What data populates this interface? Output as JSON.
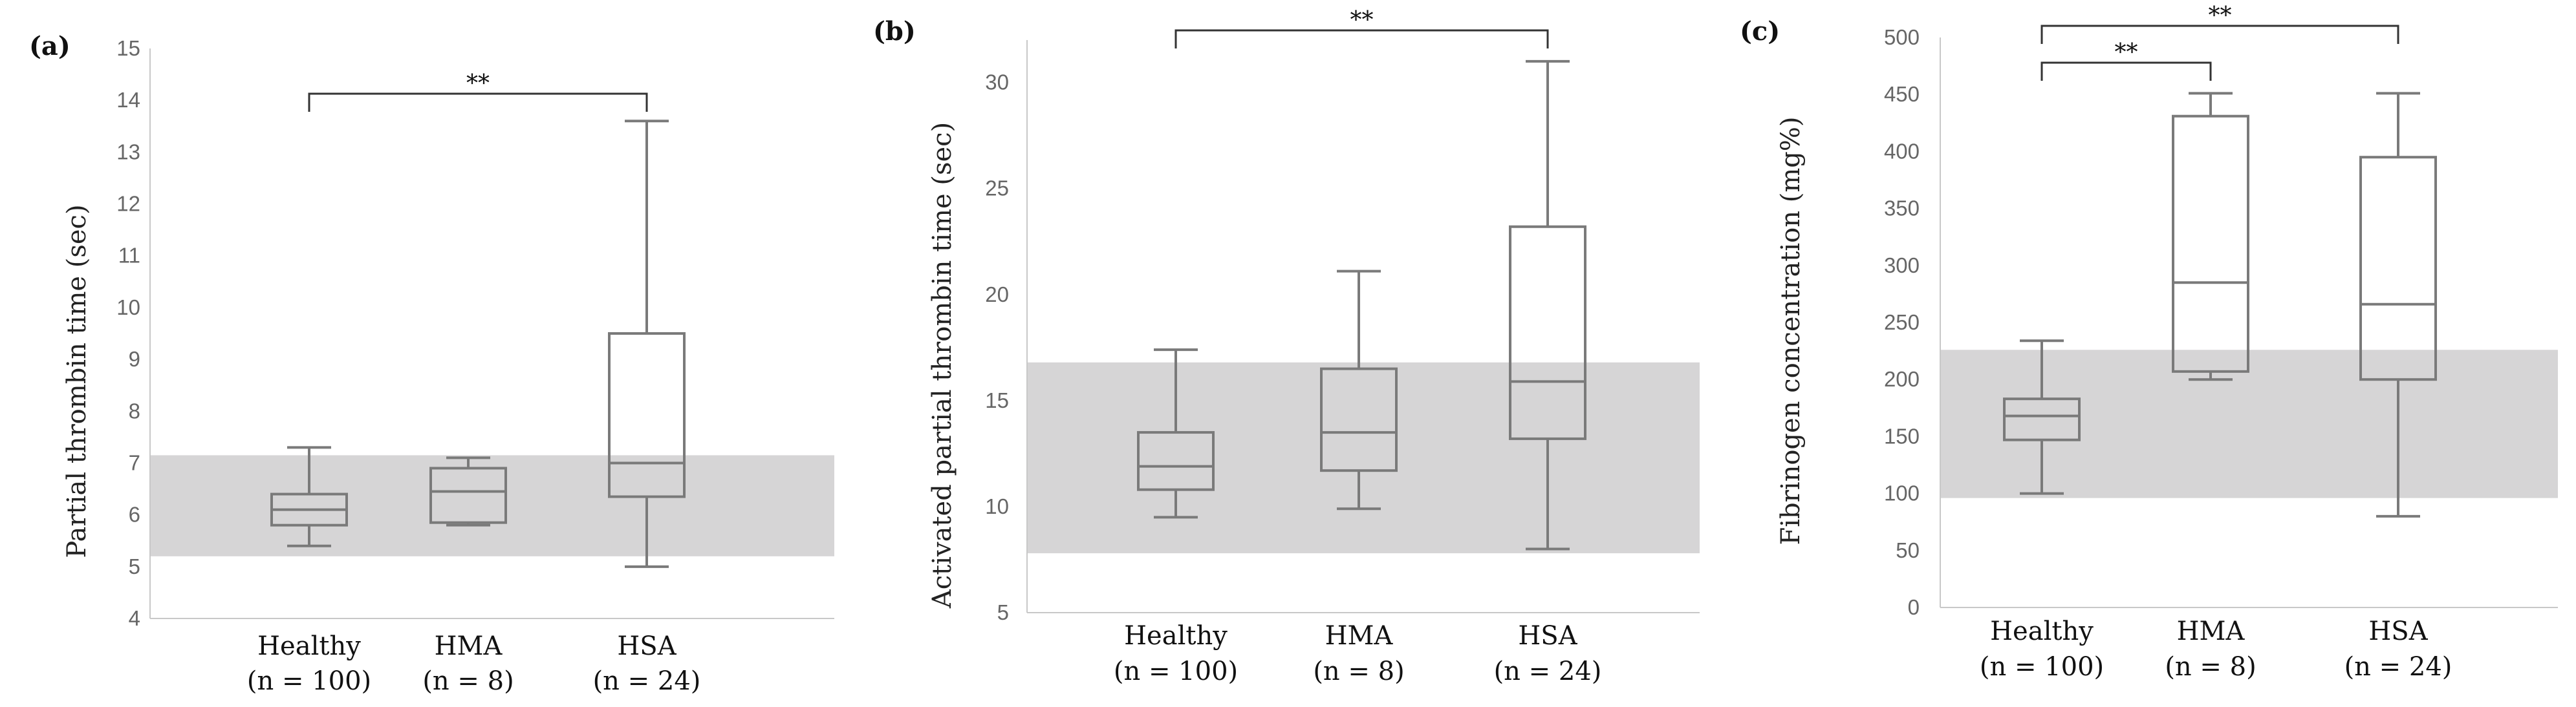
{
  "chart_data": [
    {
      "type": "box",
      "panel_label": "(a)",
      "ylabel": "Partial thrombin time (sec)",
      "ylim": [
        4,
        15
      ],
      "yticks": [
        "4",
        "5",
        "6",
        "7",
        "8",
        "9",
        "10",
        "11",
        "12",
        "13",
        "14",
        "15"
      ],
      "categories": [
        "Healthy",
        "HMA",
        "HSA"
      ],
      "category_n": [
        "(n = 100)",
        "(n = 8)",
        "(n = 24)"
      ],
      "reference_range": [
        5.2,
        7.15
      ],
      "boxes": [
        {
          "min": 5.4,
          "q1": 5.8,
          "median": 6.1,
          "q3": 6.4,
          "max": 7.3
        },
        {
          "min": 5.8,
          "q1": 5.85,
          "median": 6.45,
          "q3": 6.9,
          "max": 7.1
        },
        {
          "min": 5.0,
          "q1": 6.35,
          "median": 7.0,
          "q3": 9.5,
          "max": 13.6
        }
      ],
      "significance": [
        {
          "from": 0,
          "to": 2,
          "label": "**"
        }
      ]
    },
    {
      "type": "box",
      "panel_label": "(b)",
      "ylabel": "Activated partial thrombin time (sec)",
      "ylim": [
        5,
        32
      ],
      "yticks": [
        "5",
        "10",
        "15",
        "20",
        "25",
        "30"
      ],
      "categories": [
        "Healthy",
        "HMA",
        "HSA"
      ],
      "category_n": [
        "(n = 100)",
        "(n = 8)",
        "(n = 24)"
      ],
      "reference_range": [
        7.8,
        16.8
      ],
      "boxes": [
        {
          "min": 9.5,
          "q1": 10.8,
          "median": 11.9,
          "q3": 13.5,
          "max": 17.4
        },
        {
          "min": 9.9,
          "q1": 11.7,
          "median": 13.5,
          "q3": 16.5,
          "max": 21.1
        },
        {
          "min": 8.0,
          "q1": 13.2,
          "median": 15.9,
          "q3": 23.2,
          "max": 31.0
        }
      ],
      "significance": [
        {
          "from": 0,
          "to": 2,
          "label": "**"
        }
      ]
    },
    {
      "type": "box",
      "panel_label": "(c)",
      "ylabel": "Fibrinogen concentration (mg%)",
      "ylim": [
        0,
        500
      ],
      "yticks": [
        "0",
        "50",
        "100",
        "150",
        "200",
        "250",
        "300",
        "350",
        "400",
        "450",
        "500"
      ],
      "categories": [
        "Healthy",
        "HMA",
        "HSA"
      ],
      "category_n": [
        "(n = 100)",
        "(n = 8)",
        "(n = 24)"
      ],
      "reference_range": [
        96,
        226
      ],
      "boxes": [
        {
          "min": 100,
          "q1": 147,
          "median": 168,
          "q3": 183,
          "max": 234
        },
        {
          "min": 200,
          "q1": 207,
          "median": 285,
          "q3": 431,
          "max": 451
        },
        {
          "min": 80,
          "q1": 200,
          "median": 266,
          "q3": 395,
          "max": 451
        }
      ],
      "significance": [
        {
          "from": 0,
          "to": 1,
          "label": "**"
        },
        {
          "from": 0,
          "to": 2,
          "label": "**"
        }
      ]
    }
  ]
}
